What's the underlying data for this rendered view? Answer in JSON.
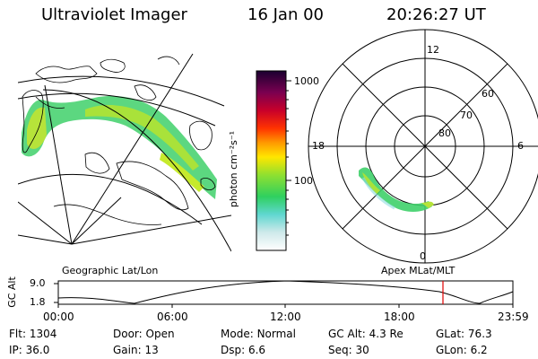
{
  "header": {
    "instrument": "Ultraviolet Imager",
    "date": "16 Jan 00",
    "time": "20:26:27 UT"
  },
  "colorbar": {
    "unit_label": "photon cm⁻²s⁻¹",
    "ticks": [
      "1000",
      "100"
    ]
  },
  "polar_plot": {
    "mlt_labels": {
      "top": "12",
      "left": "18",
      "right": "6",
      "bottom": "0"
    },
    "lat_labels": [
      "60",
      "70",
      "80"
    ]
  },
  "panel_labels": {
    "left": "Geographic Lat/Lon",
    "right": "Apex MLat/MLT"
  },
  "altitude_plot": {
    "ylabel": "GC Alt",
    "y_ticks": [
      "9.0",
      "1.8"
    ],
    "x_ticks": [
      "00:00",
      "06:00",
      "12:00",
      "18:00",
      "23:59"
    ],
    "marker_color": "#e00000"
  },
  "status": {
    "row1": [
      {
        "label": "Flt:",
        "value": "1304"
      },
      {
        "label": "Door:",
        "value": "Open"
      },
      {
        "label": "Mode:",
        "value": "Normal"
      },
      {
        "label": "GC Alt:",
        "value": "4.3 Re"
      },
      {
        "label": "GLat:",
        "value": "76.3"
      }
    ],
    "row2": [
      {
        "label": "IP:",
        "value": "36.0"
      },
      {
        "label": "Gain:",
        "value": "13"
      },
      {
        "label": "Dsp:",
        "value": "6.6"
      },
      {
        "label": "Seq:",
        "value": "30"
      },
      {
        "label": "GLon:",
        "value": "6.2"
      }
    ]
  }
}
